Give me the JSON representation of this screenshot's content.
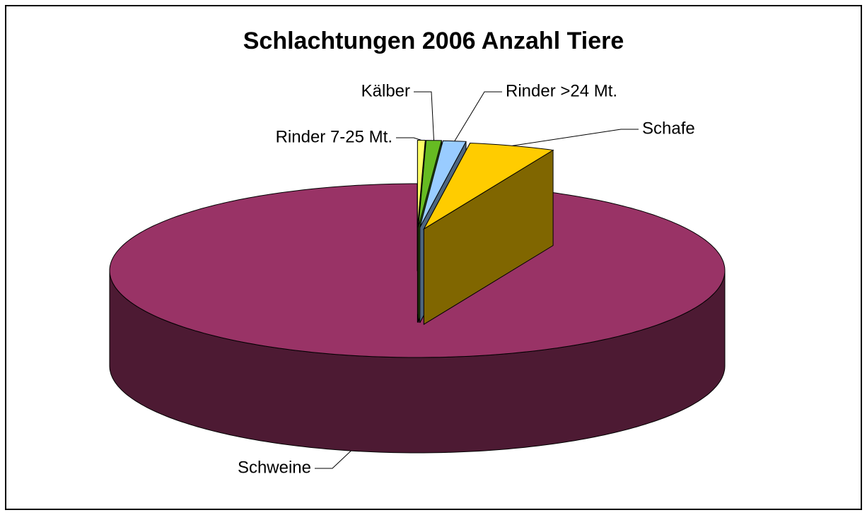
{
  "chart_data": {
    "type": "pie",
    "title": "Schlachtungen 2006 Anzahl Tiere",
    "categories": [
      "Rinder 7-25 Mt.",
      "Kälber",
      "Rinder >24 Mt.",
      "Schafe",
      "Schweine"
    ],
    "values": [
      0.4,
      0.8,
      1.2,
      4.5,
      93.1
    ],
    "colors": [
      "#ffff66",
      "#66bb22",
      "#99ccff",
      "#ffcc00",
      "#993366"
    ],
    "side_colors": [
      "#999933",
      "#336611",
      "#4d6680",
      "#806600",
      "#4d1a33"
    ]
  }
}
